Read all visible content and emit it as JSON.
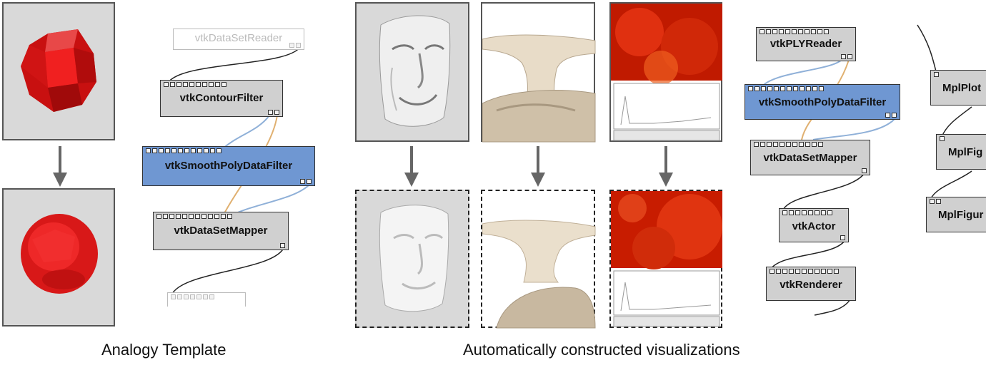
{
  "captions": {
    "template": "Analogy Template",
    "constructed": "Automatically constructed visualizations"
  },
  "template_pipeline": {
    "modules": [
      {
        "name": "vtkDataSetReader"
      },
      {
        "name": "vtkContourFilter"
      },
      {
        "name": "vtkSmoothPolyDataFilter"
      },
      {
        "name": "vtkDataSetMapper"
      }
    ]
  },
  "constructed_pipeline": {
    "modules": [
      {
        "name": "vtkPLYReader"
      },
      {
        "name": "vtkSmoothPolyDataFilter"
      },
      {
        "name": "vtkDataSetMapper"
      },
      {
        "name": "vtkActor"
      },
      {
        "name": "vtkRenderer"
      }
    ]
  },
  "mpl_pipeline": {
    "modules": [
      {
        "name": "MplPlot"
      },
      {
        "name": "MplFig"
      },
      {
        "name": "MplFigur"
      }
    ]
  },
  "colors": {
    "highlight_module": "#6f97d2",
    "module": "#d0d0d0",
    "edge_blue": "#8fb0d8",
    "edge_orange": "#e0b070",
    "edge_dark": "#222222",
    "arrow": "#666666",
    "object_red": "#e01818"
  }
}
